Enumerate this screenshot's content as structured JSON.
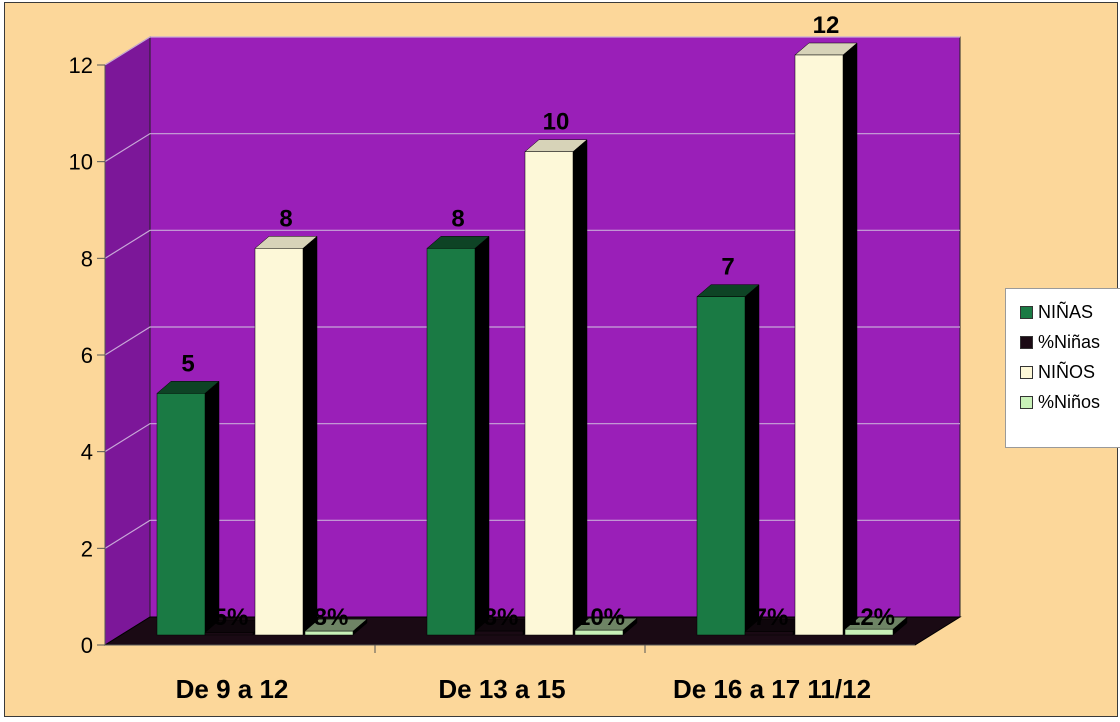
{
  "chart_data": {
    "type": "bar",
    "categories": [
      "De 9 a 12",
      "De 13 a 15",
      "De 16 a 17 11/12"
    ],
    "ylim": [
      0,
      12
    ],
    "y_ticks": [
      "0",
      "2",
      "4",
      "6",
      "8",
      "10",
      "12"
    ],
    "grid": true,
    "legend_position": "right",
    "series": [
      {
        "name": "NIÑAS",
        "values": [
          5,
          8,
          7
        ],
        "labels": [
          "5",
          "8",
          "7"
        ],
        "color": "#1a7a44"
      },
      {
        "name": "%Niñas",
        "values": [
          0.05,
          0.08,
          0.07
        ],
        "labels": [
          "5%",
          "8%",
          "7%"
        ],
        "color": "#1a0a14"
      },
      {
        "name": "NIÑOS",
        "values": [
          8,
          10,
          12
        ],
        "labels": [
          "8",
          "10",
          "12"
        ],
        "color": "#fdf8d8"
      },
      {
        "name": "%Niños",
        "values": [
          0.08,
          0.1,
          0.12
        ],
        "labels": [
          "8%",
          "10%",
          "12%"
        ],
        "color": "#c8f0b8"
      }
    ]
  },
  "colors": {
    "background": "#fcd79a",
    "plot_back": "#9a1fb8",
    "plot_side": "#7c1799",
    "floor": "#1a0a14"
  }
}
